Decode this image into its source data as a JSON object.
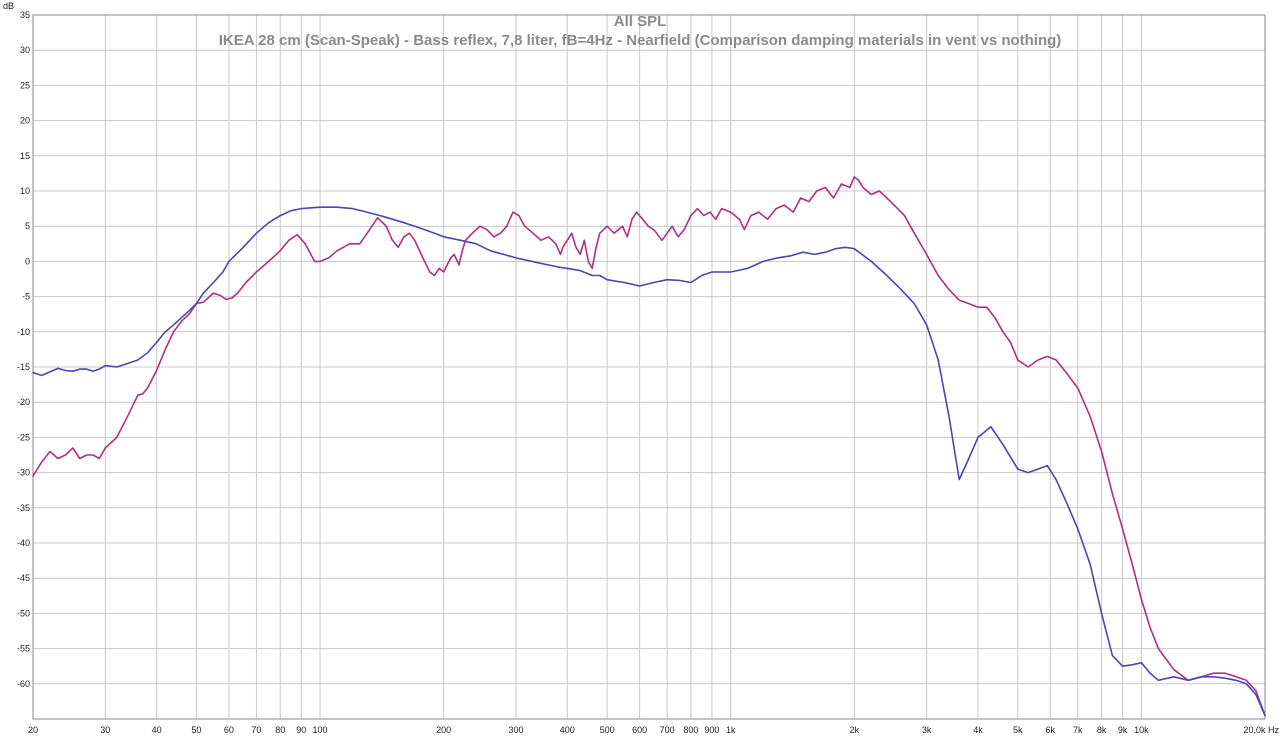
{
  "chart_data": {
    "type": "line",
    "title": "All SPL",
    "subtitle": "IKEA 28 cm (Scan-Speak) - Bass reflex, 7,8 liter, fB=4Hz - Nearfield (Comparison damping materials in vent vs nothing)",
    "ylabel": "dB",
    "xlabel_unit": "Hz",
    "x_scale": "log",
    "xlim": [
      20,
      20000
    ],
    "ylim": [
      -65,
      35
    ],
    "grid": true,
    "y_ticks": [
      35,
      30,
      25,
      20,
      15,
      10,
      5,
      0,
      -5,
      -10,
      -15,
      -20,
      -25,
      -30,
      -35,
      -40,
      -45,
      -50,
      -55,
      -60
    ],
    "y_tick_labels": [
      "35",
      "30",
      "25",
      "20",
      "15",
      "10",
      "5",
      "0",
      "-5",
      "-10",
      "-15",
      "-20",
      "-25",
      "-30",
      "-35",
      "-40",
      "-45",
      "-50",
      "-55",
      "-60"
    ],
    "x_ticks": [
      {
        "value": 20,
        "label": "20"
      },
      {
        "value": 30,
        "label": "30"
      },
      {
        "value": 40,
        "label": "40"
      },
      {
        "value": 50,
        "label": "50"
      },
      {
        "value": 60,
        "label": "60"
      },
      {
        "value": 70,
        "label": "70"
      },
      {
        "value": 80,
        "label": "80"
      },
      {
        "value": 90,
        "label": "90"
      },
      {
        "value": 100,
        "label": "100"
      },
      {
        "value": 200,
        "label": "200"
      },
      {
        "value": 300,
        "label": "300"
      },
      {
        "value": 400,
        "label": "400"
      },
      {
        "value": 500,
        "label": "500"
      },
      {
        "value": 600,
        "label": "600"
      },
      {
        "value": 700,
        "label": "700"
      },
      {
        "value": 800,
        "label": "800"
      },
      {
        "value": 900,
        "label": "900"
      },
      {
        "value": 1000,
        "label": "1k"
      },
      {
        "value": 2000,
        "label": "2k"
      },
      {
        "value": 3000,
        "label": "3k"
      },
      {
        "value": 4000,
        "label": "4k"
      },
      {
        "value": 5000,
        "label": "5k"
      },
      {
        "value": 6000,
        "label": "6k"
      },
      {
        "value": 7000,
        "label": "7k"
      },
      {
        "value": 8000,
        "label": "8k"
      },
      {
        "value": 9000,
        "label": "9k"
      },
      {
        "value": 10000,
        "label": "10k"
      },
      {
        "value": 20000,
        "label": "20,0k Hz"
      }
    ],
    "series": [
      {
        "color": "#b0307f",
        "points": [
          [
            20,
            -30.5
          ],
          [
            21,
            -28.5
          ],
          [
            22,
            -27
          ],
          [
            23,
            -28
          ],
          [
            24,
            -27.5
          ],
          [
            25,
            -26.5
          ],
          [
            26,
            -28
          ],
          [
            27,
            -27.5
          ],
          [
            28,
            -27.5
          ],
          [
            29,
            -28
          ],
          [
            30,
            -26.5
          ],
          [
            32,
            -25
          ],
          [
            34,
            -22
          ],
          [
            36,
            -19
          ],
          [
            37,
            -18.8
          ],
          [
            38,
            -18
          ],
          [
            40,
            -15.5
          ],
          [
            42,
            -12.5
          ],
          [
            44,
            -10
          ],
          [
            46,
            -8.5
          ],
          [
            48,
            -7.5
          ],
          [
            50,
            -6
          ],
          [
            52,
            -5.8
          ],
          [
            55,
            -4.5
          ],
          [
            57,
            -4.8
          ],
          [
            59,
            -5.4
          ],
          [
            61,
            -5.2
          ],
          [
            63,
            -4.5
          ],
          [
            66,
            -3
          ],
          [
            70,
            -1.5
          ],
          [
            75,
            0
          ],
          [
            80,
            1.5
          ],
          [
            84,
            3
          ],
          [
            88,
            3.8
          ],
          [
            92,
            2.5
          ],
          [
            97,
            0
          ],
          [
            100,
            0
          ],
          [
            105,
            0.5
          ],
          [
            110,
            1.5
          ],
          [
            118,
            2.5
          ],
          [
            125,
            2.5
          ],
          [
            132,
            4.5
          ],
          [
            138,
            6.2
          ],
          [
            145,
            5
          ],
          [
            150,
            3
          ],
          [
            155,
            2
          ],
          [
            160,
            3.5
          ],
          [
            165,
            4
          ],
          [
            170,
            3
          ],
          [
            178,
            0.5
          ],
          [
            185,
            -1.5
          ],
          [
            190,
            -2
          ],
          [
            195,
            -1
          ],
          [
            200,
            -1.5
          ],
          [
            208,
            0.5
          ],
          [
            212,
            1
          ],
          [
            218,
            -0.5
          ],
          [
            222,
            1.5
          ],
          [
            226,
            3
          ],
          [
            235,
            4
          ],
          [
            245,
            5
          ],
          [
            255,
            4.5
          ],
          [
            265,
            3.5
          ],
          [
            275,
            4
          ],
          [
            285,
            5
          ],
          [
            295,
            7
          ],
          [
            305,
            6.5
          ],
          [
            315,
            5
          ],
          [
            330,
            4
          ],
          [
            345,
            3
          ],
          [
            360,
            3.5
          ],
          [
            375,
            2.5
          ],
          [
            385,
            1
          ],
          [
            390,
            2
          ],
          [
            400,
            3
          ],
          [
            410,
            4
          ],
          [
            420,
            2
          ],
          [
            430,
            1
          ],
          [
            440,
            3
          ],
          [
            450,
            0
          ],
          [
            460,
            -1
          ],
          [
            470,
            2
          ],
          [
            480,
            4
          ],
          [
            500,
            5
          ],
          [
            520,
            4
          ],
          [
            545,
            5
          ],
          [
            560,
            3.5
          ],
          [
            575,
            6
          ],
          [
            590,
            7
          ],
          [
            610,
            6
          ],
          [
            630,
            5
          ],
          [
            650,
            4.5
          ],
          [
            680,
            3
          ],
          [
            700,
            4
          ],
          [
            720,
            5
          ],
          [
            745,
            3.5
          ],
          [
            770,
            4.5
          ],
          [
            800,
            6.5
          ],
          [
            830,
            7.5
          ],
          [
            860,
            6.5
          ],
          [
            890,
            7
          ],
          [
            920,
            6
          ],
          [
            950,
            7.5
          ],
          [
            1000,
            7
          ],
          [
            1050,
            6
          ],
          [
            1080,
            4.5
          ],
          [
            1120,
            6.5
          ],
          [
            1170,
            7
          ],
          [
            1230,
            6
          ],
          [
            1290,
            7.5
          ],
          [
            1350,
            8
          ],
          [
            1420,
            7
          ],
          [
            1480,
            9
          ],
          [
            1550,
            8.5
          ],
          [
            1620,
            10
          ],
          [
            1700,
            10.5
          ],
          [
            1780,
            9
          ],
          [
            1860,
            11
          ],
          [
            1950,
            10.5
          ],
          [
            2000,
            12
          ],
          [
            2050,
            11.5
          ],
          [
            2100,
            10.5
          ],
          [
            2200,
            9.5
          ],
          [
            2300,
            10
          ],
          [
            2400,
            9
          ],
          [
            2500,
            8
          ],
          [
            2650,
            6.5
          ],
          [
            2800,
            4
          ],
          [
            3000,
            1
          ],
          [
            3200,
            -2
          ],
          [
            3400,
            -4
          ],
          [
            3600,
            -5.5
          ],
          [
            3800,
            -6
          ],
          [
            4000,
            -6.5
          ],
          [
            4200,
            -6.5
          ],
          [
            4400,
            -8
          ],
          [
            4600,
            -10
          ],
          [
            4800,
            -11.5
          ],
          [
            5000,
            -14
          ],
          [
            5300,
            -15
          ],
          [
            5600,
            -14
          ],
          [
            5900,
            -13.5
          ],
          [
            6200,
            -14
          ],
          [
            6600,
            -16
          ],
          [
            7000,
            -18
          ],
          [
            7500,
            -22
          ],
          [
            8000,
            -27
          ],
          [
            8500,
            -33
          ],
          [
            9000,
            -38
          ],
          [
            9500,
            -43
          ],
          [
            10000,
            -48
          ],
          [
            10500,
            -52
          ],
          [
            11000,
            -55
          ],
          [
            12000,
            -58
          ],
          [
            13000,
            -59.5
          ],
          [
            14000,
            -59
          ],
          [
            15000,
            -58.5
          ],
          [
            16000,
            -58.5
          ],
          [
            17000,
            -59
          ],
          [
            18000,
            -59.5
          ],
          [
            19000,
            -61
          ],
          [
            20000,
            -64.5
          ]
        ]
      },
      {
        "color": "#4747b5",
        "points": [
          [
            20,
            -15.8
          ],
          [
            21,
            -16.2
          ],
          [
            22,
            -15.7
          ],
          [
            23,
            -15.2
          ],
          [
            24,
            -15.5
          ],
          [
            25,
            -15.6
          ],
          [
            26,
            -15.3
          ],
          [
            27,
            -15.3
          ],
          [
            28,
            -15.6
          ],
          [
            29,
            -15.3
          ],
          [
            30,
            -14.8
          ],
          [
            32,
            -15
          ],
          [
            34,
            -14.5
          ],
          [
            36,
            -14
          ],
          [
            38,
            -13
          ],
          [
            40,
            -11.5
          ],
          [
            42,
            -10
          ],
          [
            44,
            -9
          ],
          [
            46,
            -8
          ],
          [
            48,
            -7
          ],
          [
            50,
            -6
          ],
          [
            52,
            -4.5
          ],
          [
            55,
            -3
          ],
          [
            58,
            -1.5
          ],
          [
            60,
            0
          ],
          [
            65,
            2
          ],
          [
            70,
            4
          ],
          [
            75,
            5.5
          ],
          [
            80,
            6.5
          ],
          [
            85,
            7.2
          ],
          [
            90,
            7.5
          ],
          [
            100,
            7.7
          ],
          [
            110,
            7.7
          ],
          [
            120,
            7.5
          ],
          [
            130,
            7
          ],
          [
            140,
            6.5
          ],
          [
            150,
            6
          ],
          [
            160,
            5.5
          ],
          [
            170,
            5
          ],
          [
            180,
            4.5
          ],
          [
            190,
            4
          ],
          [
            200,
            3.5
          ],
          [
            220,
            3
          ],
          [
            240,
            2.5
          ],
          [
            260,
            1.5
          ],
          [
            280,
            1
          ],
          [
            300,
            0.5
          ],
          [
            340,
            -0.2
          ],
          [
            380,
            -0.8
          ],
          [
            400,
            -1
          ],
          [
            430,
            -1.3
          ],
          [
            460,
            -2
          ],
          [
            480,
            -2
          ],
          [
            500,
            -2.6
          ],
          [
            550,
            -3
          ],
          [
            600,
            -3.5
          ],
          [
            650,
            -3
          ],
          [
            700,
            -2.6
          ],
          [
            750,
            -2.7
          ],
          [
            800,
            -3
          ],
          [
            850,
            -2
          ],
          [
            900,
            -1.5
          ],
          [
            1000,
            -1.5
          ],
          [
            1100,
            -1
          ],
          [
            1200,
            0
          ],
          [
            1300,
            0.5
          ],
          [
            1400,
            0.8
          ],
          [
            1500,
            1.3
          ],
          [
            1600,
            1
          ],
          [
            1700,
            1.3
          ],
          [
            1800,
            1.8
          ],
          [
            1900,
            2
          ],
          [
            2000,
            1.8
          ],
          [
            2200,
            0
          ],
          [
            2400,
            -2
          ],
          [
            2600,
            -4
          ],
          [
            2800,
            -6
          ],
          [
            3000,
            -9
          ],
          [
            3200,
            -14
          ],
          [
            3400,
            -22
          ],
          [
            3600,
            -31
          ],
          [
            3800,
            -28
          ],
          [
            4000,
            -25
          ],
          [
            4300,
            -23.5
          ],
          [
            4600,
            -26
          ],
          [
            5000,
            -29.5
          ],
          [
            5300,
            -30
          ],
          [
            5600,
            -29.5
          ],
          [
            5900,
            -29
          ],
          [
            6200,
            -31
          ],
          [
            6600,
            -34.5
          ],
          [
            7000,
            -38
          ],
          [
            7500,
            -43
          ],
          [
            8000,
            -50
          ],
          [
            8500,
            -56
          ],
          [
            9000,
            -57.5
          ],
          [
            9500,
            -57.3
          ],
          [
            10000,
            -57
          ],
          [
            10500,
            -58.5
          ],
          [
            11000,
            -59.5
          ],
          [
            12000,
            -59
          ],
          [
            13000,
            -59.5
          ],
          [
            14000,
            -59
          ],
          [
            15000,
            -59
          ],
          [
            16000,
            -59.2
          ],
          [
            17000,
            -59.5
          ],
          [
            18000,
            -60
          ],
          [
            19000,
            -61.5
          ],
          [
            20000,
            -64.5
          ]
        ]
      }
    ]
  }
}
